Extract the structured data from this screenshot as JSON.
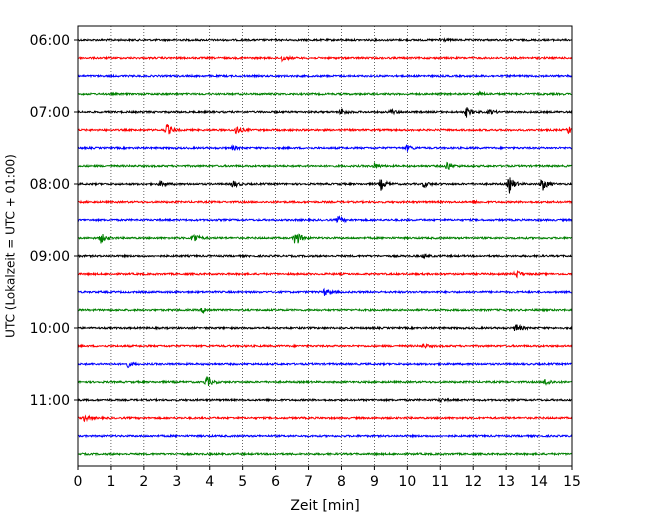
{
  "chart_data": {
    "type": "line",
    "title": "",
    "xlabel": "Zeit  [min]",
    "ylabel": "UTC (Lokalzeit = UTC + 01:00)",
    "xlim": [
      0,
      15
    ],
    "x_ticks": [
      "0",
      "1",
      "2",
      "3",
      "4",
      "5",
      "6",
      "7",
      "8",
      "9",
      "10",
      "11",
      "12",
      "13",
      "14",
      "15"
    ],
    "y_ticks": [
      "06:00",
      "07:00",
      "08:00",
      "09:00",
      "10:00",
      "11:00"
    ],
    "grid": "vertical dotted at each minute",
    "legend": "none",
    "colors": {
      "black": "#000000",
      "red": "#ff0000",
      "blue": "#0000ff",
      "green": "#008000"
    },
    "traces": [
      {
        "start": "06:00",
        "color": "black",
        "events": [
          {
            "t": 11.0,
            "amp": 2
          }
        ]
      },
      {
        "start": "06:15",
        "color": "red",
        "events": [
          {
            "t": 6.2,
            "amp": 3
          }
        ]
      },
      {
        "start": "06:30",
        "color": "blue",
        "events": []
      },
      {
        "start": "06:45",
        "color": "green",
        "events": [
          {
            "t": 12.2,
            "amp": 1.5
          }
        ]
      },
      {
        "start": "07:00",
        "color": "black",
        "events": [
          {
            "t": 8.0,
            "amp": 3
          },
          {
            "t": 9.5,
            "amp": 2.5
          },
          {
            "t": 11.8,
            "amp": 5
          },
          {
            "t": 12.5,
            "amp": 2.5
          }
        ]
      },
      {
        "start": "07:15",
        "color": "red",
        "events": [
          {
            "t": 2.7,
            "amp": 6
          },
          {
            "t": 4.8,
            "amp": 5
          },
          {
            "t": 14.9,
            "amp": 4
          }
        ]
      },
      {
        "start": "07:30",
        "color": "blue",
        "events": [
          {
            "t": 4.7,
            "amp": 2
          },
          {
            "t": 10.0,
            "amp": 3
          }
        ]
      },
      {
        "start": "07:45",
        "color": "green",
        "events": [
          {
            "t": 9.0,
            "amp": 3
          },
          {
            "t": 11.2,
            "amp": 5
          }
        ]
      },
      {
        "start": "08:00",
        "color": "black",
        "events": [
          {
            "t": 2.5,
            "amp": 3
          },
          {
            "t": 4.7,
            "amp": 4
          },
          {
            "t": 9.2,
            "amp": 6
          },
          {
            "t": 10.5,
            "amp": 3
          },
          {
            "t": 13.1,
            "amp": 9
          },
          {
            "t": 14.1,
            "amp": 7
          }
        ]
      },
      {
        "start": "08:15",
        "color": "red",
        "events": [
          {
            "t": 12.0,
            "amp": 1.5
          }
        ]
      },
      {
        "start": "08:30",
        "color": "blue",
        "events": [
          {
            "t": 7.9,
            "amp": 3.5
          }
        ]
      },
      {
        "start": "08:45",
        "color": "green",
        "events": [
          {
            "t": 0.7,
            "amp": 5
          },
          {
            "t": 3.5,
            "amp": 6
          },
          {
            "t": 6.6,
            "amp": 9
          }
        ]
      },
      {
        "start": "09:00",
        "color": "black",
        "events": [
          {
            "t": 10.5,
            "amp": 2
          }
        ]
      },
      {
        "start": "09:15",
        "color": "red",
        "events": [
          {
            "t": 13.3,
            "amp": 4
          }
        ]
      },
      {
        "start": "09:30",
        "color": "blue",
        "events": [
          {
            "t": 7.5,
            "amp": 4
          }
        ]
      },
      {
        "start": "09:45",
        "color": "green",
        "events": [
          {
            "t": 3.8,
            "amp": 3
          }
        ]
      },
      {
        "start": "10:00",
        "color": "black",
        "events": [
          {
            "t": 13.3,
            "amp": 5
          }
        ]
      },
      {
        "start": "10:15",
        "color": "red",
        "events": [
          {
            "t": 10.5,
            "amp": 2
          }
        ]
      },
      {
        "start": "10:30",
        "color": "blue",
        "events": [
          {
            "t": 1.5,
            "amp": 3
          }
        ]
      },
      {
        "start": "10:45",
        "color": "green",
        "events": [
          {
            "t": 3.9,
            "amp": 6
          },
          {
            "t": 14.2,
            "amp": 4
          }
        ]
      },
      {
        "start": "11:00",
        "color": "black",
        "events": [
          {
            "t": 11.0,
            "amp": 1.5
          }
        ]
      },
      {
        "start": "11:15",
        "color": "red",
        "events": [
          {
            "t": 0.2,
            "amp": 3
          }
        ]
      },
      {
        "start": "11:30",
        "color": "blue",
        "events": []
      },
      {
        "start": "11:45",
        "color": "green",
        "events": []
      }
    ]
  }
}
